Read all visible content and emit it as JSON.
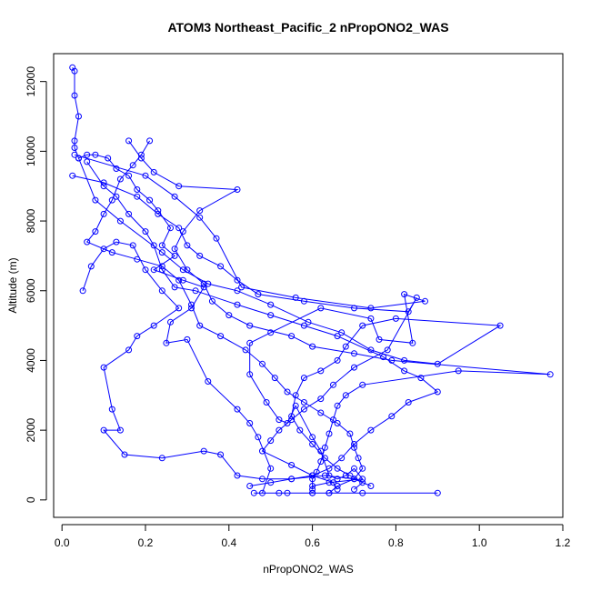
{
  "chart_data": {
    "type": "line",
    "title": "ATOM3 Northeast_Pacific_2 nPropONO2_WAS",
    "xlabel": "nPropONO2_WAS",
    "ylabel": "Altitude (m)",
    "xlim": [
      -0.02,
      1.2
    ],
    "ylim": [
      -500,
      12800
    ],
    "xticks": [
      0.0,
      0.2,
      0.4,
      0.6,
      0.8,
      1.0,
      1.2
    ],
    "xtick_labels": [
      "0.0",
      "0.2",
      "0.4",
      "0.6",
      "0.8",
      "1.0",
      "1.2"
    ],
    "yticks": [
      0,
      2000,
      4000,
      6000,
      8000,
      10000,
      12000
    ],
    "ytick_labels": [
      "0",
      "2000",
      "4000",
      "6000",
      "8000",
      "10000",
      "12000"
    ],
    "grid": false,
    "colors": {
      "series": "#0000ff",
      "axis": "#000000",
      "background": "#ffffff"
    },
    "marker": "open-circle",
    "series": [
      {
        "points": [
          [
            0.46,
            200
          ],
          [
            0.52,
            200
          ],
          [
            0.6,
            200
          ],
          [
            0.64,
            200
          ],
          [
            0.72,
            200
          ],
          [
            0.9,
            200
          ],
          [
            0.6,
            200
          ],
          [
            0.54,
            200
          ],
          [
            0.48,
            200
          ],
          [
            0.5,
            900
          ],
          [
            0.47,
            1800
          ],
          [
            0.45,
            2200
          ],
          [
            0.42,
            2600
          ],
          [
            0.35,
            3400
          ],
          [
            0.3,
            4600
          ],
          [
            0.25,
            4500
          ],
          [
            0.26,
            5100
          ],
          [
            0.31,
            5500
          ],
          [
            0.34,
            6100
          ],
          [
            0.29,
            6300
          ],
          [
            0.22,
            6600
          ],
          [
            0.27,
            7000
          ],
          [
            0.24,
            7300
          ],
          [
            0.26,
            7800
          ],
          [
            0.23,
            8300
          ],
          [
            0.21,
            8600
          ],
          [
            0.18,
            8900
          ],
          [
            0.16,
            9300
          ],
          [
            0.13,
            9500
          ],
          [
            0.11,
            9800
          ],
          [
            0.08,
            9900
          ],
          [
            0.06,
            9900
          ],
          [
            0.04,
            9800
          ],
          [
            0.03,
            10100
          ],
          [
            0.03,
            10300
          ],
          [
            0.04,
            11000
          ],
          [
            0.03,
            11600
          ],
          [
            0.03,
            12300
          ],
          [
            0.025,
            12400
          ]
        ]
      },
      {
        "points": [
          [
            0.03,
            9900
          ],
          [
            0.2,
            9300
          ],
          [
            0.27,
            8700
          ],
          [
            0.33,
            8100
          ],
          [
            0.37,
            7500
          ],
          [
            0.43,
            6100
          ],
          [
            0.56,
            5800
          ],
          [
            0.74,
            5500
          ],
          [
            0.87,
            5700
          ],
          [
            0.82,
            5900
          ],
          [
            0.84,
            4500
          ],
          [
            0.76,
            4600
          ],
          [
            0.74,
            5200
          ],
          [
            0.62,
            5500
          ],
          [
            0.5,
            4800
          ],
          [
            0.45,
            4500
          ],
          [
            0.45,
            3600
          ],
          [
            0.49,
            2800
          ],
          [
            0.52,
            2300
          ],
          [
            0.54,
            2200
          ],
          [
            0.56,
            2700
          ],
          [
            0.6,
            1800
          ],
          [
            0.62,
            1400
          ],
          [
            0.64,
            700
          ],
          [
            0.66,
            600
          ],
          [
            0.68,
            700
          ],
          [
            0.7,
            900
          ],
          [
            0.72,
            600
          ],
          [
            0.64,
            500
          ],
          [
            0.6,
            400
          ]
        ]
      },
      {
        "points": [
          [
            0.06,
            9700
          ],
          [
            0.1,
            9000
          ],
          [
            0.13,
            8700
          ],
          [
            0.16,
            8200
          ],
          [
            0.2,
            7700
          ],
          [
            0.22,
            7300
          ],
          [
            0.24,
            6600
          ],
          [
            0.27,
            6100
          ],
          [
            0.32,
            6000
          ],
          [
            0.42,
            5600
          ],
          [
            0.5,
            5300
          ],
          [
            0.58,
            5000
          ],
          [
            0.66,
            4700
          ],
          [
            0.77,
            4100
          ],
          [
            0.82,
            3700
          ],
          [
            0.86,
            3500
          ],
          [
            0.9,
            3100
          ],
          [
            0.83,
            2800
          ],
          [
            0.79,
            2400
          ],
          [
            0.74,
            2000
          ],
          [
            0.7,
            1600
          ],
          [
            0.67,
            1200
          ],
          [
            0.64,
            900
          ],
          [
            0.6,
            700
          ],
          [
            0.55,
            600
          ],
          [
            0.5,
            500
          ],
          [
            0.45,
            400
          ]
        ]
      },
      {
        "points": [
          [
            0.05,
            6000
          ],
          [
            0.07,
            6700
          ],
          [
            0.1,
            7200
          ],
          [
            0.13,
            7400
          ],
          [
            0.17,
            7300
          ],
          [
            0.2,
            6600
          ],
          [
            0.24,
            6000
          ],
          [
            0.28,
            5500
          ],
          [
            0.22,
            5000
          ],
          [
            0.18,
            4700
          ],
          [
            0.16,
            4300
          ],
          [
            0.1,
            3800
          ],
          [
            0.12,
            2600
          ],
          [
            0.14,
            2000
          ],
          [
            0.1,
            2000
          ],
          [
            0.15,
            1300
          ],
          [
            0.24,
            1200
          ],
          [
            0.34,
            1400
          ],
          [
            0.38,
            1300
          ],
          [
            0.42,
            700
          ],
          [
            0.48,
            600
          ],
          [
            0.55,
            600
          ],
          [
            0.63,
            700
          ],
          [
            0.7,
            600
          ],
          [
            0.74,
            400
          ]
        ]
      },
      {
        "points": [
          [
            0.04,
            9800
          ],
          [
            0.08,
            8600
          ],
          [
            0.14,
            8000
          ],
          [
            0.24,
            7100
          ],
          [
            0.29,
            6600
          ],
          [
            0.35,
            6200
          ],
          [
            0.42,
            6000
          ],
          [
            0.5,
            5600
          ],
          [
            0.59,
            5100
          ],
          [
            0.67,
            4800
          ],
          [
            0.74,
            4300
          ],
          [
            0.82,
            4000
          ],
          [
            0.9,
            3900
          ],
          [
            1.05,
            5000
          ],
          [
            0.8,
            5200
          ],
          [
            0.72,
            5000
          ],
          [
            0.68,
            4400
          ],
          [
            0.66,
            4000
          ],
          [
            0.62,
            3700
          ],
          [
            0.58,
            3500
          ],
          [
            0.56,
            3000
          ],
          [
            0.55,
            2400
          ],
          [
            0.57,
            2000
          ],
          [
            0.6,
            1600
          ],
          [
            0.63,
            1200
          ],
          [
            0.66,
            900
          ],
          [
            0.69,
            700
          ],
          [
            0.72,
            500
          ],
          [
            0.7,
            300
          ]
        ]
      },
      {
        "points": [
          [
            0.025,
            9300
          ],
          [
            0.1,
            9100
          ],
          [
            0.18,
            8700
          ],
          [
            0.23,
            8200
          ],
          [
            0.28,
            7800
          ],
          [
            0.3,
            7300
          ],
          [
            0.33,
            7000
          ],
          [
            0.38,
            6700
          ],
          [
            0.42,
            6300
          ],
          [
            0.47,
            5900
          ],
          [
            0.58,
            5700
          ],
          [
            0.7,
            5500
          ],
          [
            0.83,
            5400
          ],
          [
            0.85,
            5800
          ],
          [
            0.78,
            4300
          ],
          [
            0.7,
            3800
          ],
          [
            0.65,
            3300
          ],
          [
            0.62,
            2900
          ],
          [
            0.58,
            2600
          ],
          [
            0.55,
            2300
          ],
          [
            0.52,
            2000
          ],
          [
            0.5,
            1700
          ],
          [
            0.48,
            1400
          ],
          [
            0.55,
            1000
          ],
          [
            0.6,
            700
          ],
          [
            0.65,
            500
          ],
          [
            0.66,
            300
          ]
        ]
      },
      {
        "points": [
          [
            0.16,
            10300
          ],
          [
            0.19,
            9800
          ],
          [
            0.22,
            9400
          ],
          [
            0.28,
            9000
          ],
          [
            0.42,
            8900
          ],
          [
            0.33,
            8300
          ],
          [
            0.29,
            7700
          ],
          [
            0.27,
            7200
          ],
          [
            0.3,
            6600
          ],
          [
            0.34,
            6200
          ],
          [
            0.36,
            5700
          ],
          [
            0.4,
            5300
          ],
          [
            0.45,
            5000
          ],
          [
            0.55,
            4700
          ],
          [
            0.6,
            4400
          ],
          [
            0.7,
            4200
          ],
          [
            0.79,
            4000
          ],
          [
            1.17,
            3600
          ],
          [
            0.95,
            3700
          ],
          [
            0.72,
            3300
          ],
          [
            0.68,
            3000
          ],
          [
            0.66,
            2700
          ],
          [
            0.65,
            2300
          ],
          [
            0.64,
            1900
          ],
          [
            0.63,
            1500
          ],
          [
            0.62,
            1100
          ],
          [
            0.61,
            800
          ],
          [
            0.6,
            600
          ],
          [
            0.6,
            300
          ]
        ]
      },
      {
        "points": [
          [
            0.21,
            10300
          ],
          [
            0.19,
            9900
          ],
          [
            0.17,
            9600
          ],
          [
            0.14,
            9200
          ],
          [
            0.12,
            8600
          ],
          [
            0.1,
            8200
          ],
          [
            0.08,
            7700
          ],
          [
            0.06,
            7400
          ],
          [
            0.12,
            7100
          ],
          [
            0.18,
            6900
          ],
          [
            0.24,
            6700
          ],
          [
            0.28,
            6300
          ],
          [
            0.31,
            5600
          ],
          [
            0.33,
            5000
          ],
          [
            0.38,
            4700
          ],
          [
            0.44,
            4300
          ],
          [
            0.48,
            3900
          ],
          [
            0.51,
            3500
          ],
          [
            0.54,
            3100
          ],
          [
            0.58,
            2800
          ],
          [
            0.62,
            2500
          ],
          [
            0.66,
            2200
          ],
          [
            0.69,
            1900
          ],
          [
            0.7,
            1500
          ],
          [
            0.71,
            1200
          ],
          [
            0.72,
            900
          ],
          [
            0.7,
            600
          ],
          [
            0.66,
            400
          ],
          [
            0.64,
            200
          ]
        ]
      }
    ]
  }
}
